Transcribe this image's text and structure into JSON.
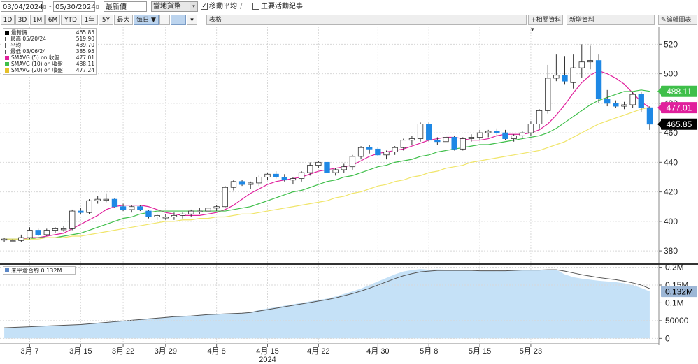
{
  "toolbar": {
    "start_date": "03/04/2024",
    "end_date": "05/30/2024",
    "price_type": "最新價",
    "currency": "當地貨幣",
    "moving_avg_label": "移動平均",
    "moving_avg_checked": true,
    "events_label": "主要活動紀事",
    "events_checked": false,
    "pencil_icon": "pencil-icon",
    "calendar_icon": "calendar-icon"
  },
  "ranges": {
    "buttons": [
      "1D",
      "3D",
      "1M",
      "6M",
      "YTD",
      "1年",
      "5Y",
      "最大"
    ],
    "frequency": "每日 ▼",
    "chart_type_label": "表格",
    "related_data": "相關資料",
    "news_data": "新增資料",
    "edit_chart": "編輯圖表"
  },
  "legend": {
    "items": [
      {
        "name": "最新價",
        "value": "465.85",
        "color": "#000000",
        "icon": "square"
      },
      {
        "name": "最高 05/20/24",
        "value": "519.90",
        "color": "#555555",
        "icon": "arrow-up-icon"
      },
      {
        "name": "平均",
        "value": "439.70",
        "color": "#555555",
        "icon": "average-icon"
      },
      {
        "name": "最低 03/06/24",
        "value": "385.95",
        "color": "#555555",
        "icon": "arrow-down-icon"
      },
      {
        "name": "SMAVG (5) on 收盤",
        "value": "477.01",
        "color": "#e0209c",
        "icon": "square"
      },
      {
        "name": "SMAVG (10) on 收盤",
        "value": "488.11",
        "color": "#3fbf4a",
        "icon": "square"
      },
      {
        "name": "SMAVG (20) on 收盤",
        "value": "477.24",
        "color": "#e6c02a",
        "icon": "square"
      }
    ]
  },
  "volume_legend": {
    "label": "未平倉合約 0.132M",
    "color": "#5b87c7"
  },
  "badges": [
    {
      "text": "488.11",
      "bg": "#3fbf4a",
      "color": "#ffffff",
      "value": 488.11
    },
    {
      "text": "477.01",
      "bg": "#e0209c",
      "color": "#ffffff",
      "value": 477.01
    },
    {
      "text": "465.85",
      "bg": "#000000",
      "color": "#ffffff",
      "value": 465.85
    }
  ],
  "volume_badge": {
    "text": "0.132M",
    "bg": "#9db7d6",
    "color": "#000000"
  },
  "chart_data": [
    {
      "type": "candlestick",
      "x_tick_labels": [
        "3月 7",
        "3月 15",
        "3月 22",
        "3月 29",
        "4月 8",
        "4月 15",
        "4月 22",
        "4月 30",
        "5月 8",
        "5月 15",
        "5月 23"
      ],
      "x_year_label": "2024",
      "y_ticks": [
        380,
        400,
        420,
        440,
        460,
        480,
        500,
        520
      ],
      "ylim": [
        372,
        532
      ],
      "up_color": "#ffffff",
      "down_color": "#1e88e5",
      "candles": [
        {
          "o": 388,
          "h": 389,
          "l": 386,
          "c": 388
        },
        {
          "o": 387,
          "h": 388,
          "l": 386,
          "c": 387
        },
        {
          "o": 387,
          "h": 391,
          "l": 386,
          "c": 389
        },
        {
          "o": 389,
          "h": 396,
          "l": 388,
          "c": 394
        },
        {
          "o": 394,
          "h": 395,
          "l": 390,
          "c": 391
        },
        {
          "o": 391,
          "h": 395,
          "l": 390,
          "c": 394
        },
        {
          "o": 394,
          "h": 396,
          "l": 392,
          "c": 395
        },
        {
          "o": 395,
          "h": 397,
          "l": 393,
          "c": 395
        },
        {
          "o": 395,
          "h": 408,
          "l": 394,
          "c": 407
        },
        {
          "o": 407,
          "h": 409,
          "l": 405,
          "c": 406
        },
        {
          "o": 406,
          "h": 415,
          "l": 405,
          "c": 414
        },
        {
          "o": 414,
          "h": 417,
          "l": 412,
          "c": 415
        },
        {
          "o": 415,
          "h": 419,
          "l": 413,
          "c": 415
        },
        {
          "o": 415,
          "h": 416,
          "l": 409,
          "c": 410
        },
        {
          "o": 410,
          "h": 412,
          "l": 407,
          "c": 408
        },
        {
          "o": 408,
          "h": 411,
          "l": 406,
          "c": 410
        },
        {
          "o": 410,
          "h": 411,
          "l": 407,
          "c": 408
        },
        {
          "o": 407,
          "h": 408,
          "l": 402,
          "c": 403
        },
        {
          "o": 403,
          "h": 405,
          "l": 401,
          "c": 404
        },
        {
          "o": 403,
          "h": 405,
          "l": 401,
          "c": 403
        },
        {
          "o": 403,
          "h": 406,
          "l": 401,
          "c": 404
        },
        {
          "o": 404,
          "h": 406,
          "l": 402,
          "c": 405
        },
        {
          "o": 405,
          "h": 408,
          "l": 403,
          "c": 407
        },
        {
          "o": 407,
          "h": 409,
          "l": 405,
          "c": 407
        },
        {
          "o": 407,
          "h": 410,
          "l": 405,
          "c": 409
        },
        {
          "o": 409,
          "h": 411,
          "l": 407,
          "c": 410
        },
        {
          "o": 410,
          "h": 424,
          "l": 409,
          "c": 423
        },
        {
          "o": 423,
          "h": 428,
          "l": 421,
          "c": 427
        },
        {
          "o": 427,
          "h": 428,
          "l": 424,
          "c": 425
        },
        {
          "o": 425,
          "h": 427,
          "l": 422,
          "c": 426
        },
        {
          "o": 426,
          "h": 431,
          "l": 424,
          "c": 430
        },
        {
          "o": 430,
          "h": 433,
          "l": 428,
          "c": 432
        },
        {
          "o": 432,
          "h": 434,
          "l": 429,
          "c": 430
        },
        {
          "o": 430,
          "h": 432,
          "l": 427,
          "c": 428
        },
        {
          "o": 428,
          "h": 430,
          "l": 425,
          "c": 429
        },
        {
          "o": 429,
          "h": 434,
          "l": 427,
          "c": 433
        },
        {
          "o": 433,
          "h": 440,
          "l": 431,
          "c": 438
        },
        {
          "o": 438,
          "h": 441,
          "l": 436,
          "c": 440
        },
        {
          "o": 440,
          "h": 440,
          "l": 431,
          "c": 433
        },
        {
          "o": 433,
          "h": 436,
          "l": 431,
          "c": 435
        },
        {
          "o": 435,
          "h": 439,
          "l": 433,
          "c": 437
        },
        {
          "o": 437,
          "h": 445,
          "l": 435,
          "c": 444
        },
        {
          "o": 444,
          "h": 451,
          "l": 442,
          "c": 450
        },
        {
          "o": 450,
          "h": 452,
          "l": 446,
          "c": 449
        },
        {
          "o": 449,
          "h": 450,
          "l": 444,
          "c": 445
        },
        {
          "o": 445,
          "h": 448,
          "l": 442,
          "c": 447
        },
        {
          "o": 447,
          "h": 451,
          "l": 445,
          "c": 450
        },
        {
          "o": 450,
          "h": 456,
          "l": 448,
          "c": 455
        },
        {
          "o": 455,
          "h": 458,
          "l": 452,
          "c": 456
        },
        {
          "o": 456,
          "h": 467,
          "l": 454,
          "c": 466
        },
        {
          "o": 466,
          "h": 467,
          "l": 454,
          "c": 455
        },
        {
          "o": 455,
          "h": 457,
          "l": 452,
          "c": 454
        },
        {
          "o": 454,
          "h": 459,
          "l": 452,
          "c": 457
        },
        {
          "o": 457,
          "h": 458,
          "l": 448,
          "c": 449
        },
        {
          "o": 449,
          "h": 457,
          "l": 448,
          "c": 456
        },
        {
          "o": 456,
          "h": 459,
          "l": 454,
          "c": 457
        },
        {
          "o": 457,
          "h": 462,
          "l": 455,
          "c": 460
        },
        {
          "o": 460,
          "h": 462,
          "l": 457,
          "c": 461
        },
        {
          "o": 461,
          "h": 463,
          "l": 458,
          "c": 460
        },
        {
          "o": 460,
          "h": 462,
          "l": 455,
          "c": 456
        },
        {
          "o": 456,
          "h": 459,
          "l": 454,
          "c": 458
        },
        {
          "o": 458,
          "h": 461,
          "l": 456,
          "c": 460
        },
        {
          "o": 460,
          "h": 468,
          "l": 458,
          "c": 466
        },
        {
          "o": 466,
          "h": 476,
          "l": 463,
          "c": 475
        },
        {
          "o": 475,
          "h": 506,
          "l": 473,
          "c": 497
        },
        {
          "o": 497,
          "h": 513,
          "l": 495,
          "c": 499
        },
        {
          "o": 499,
          "h": 512,
          "l": 493,
          "c": 495
        },
        {
          "o": 494,
          "h": 513,
          "l": 490,
          "c": 504
        },
        {
          "o": 504,
          "h": 520,
          "l": 497,
          "c": 508
        },
        {
          "o": 508,
          "h": 519,
          "l": 503,
          "c": 509
        },
        {
          "o": 509,
          "h": 513,
          "l": 480,
          "c": 483
        },
        {
          "o": 483,
          "h": 489,
          "l": 478,
          "c": 480
        },
        {
          "o": 480,
          "h": 482,
          "l": 477,
          "c": 478
        },
        {
          "o": 478,
          "h": 481,
          "l": 476,
          "c": 479
        },
        {
          "o": 479,
          "h": 488,
          "l": 477,
          "c": 486
        },
        {
          "o": 486,
          "h": 488,
          "l": 474,
          "c": 477
        },
        {
          "o": 477,
          "h": 478,
          "l": 462,
          "c": 465.85
        }
      ],
      "series": [
        {
          "name": "SMAVG (5) on 收盤",
          "color": "#e0209c",
          "values": [
            388,
            388,
            388,
            389,
            389,
            390,
            391,
            392,
            395,
            398,
            401,
            404,
            408,
            410,
            411,
            411,
            411,
            410,
            408,
            406,
            405,
            404,
            404,
            404,
            405,
            406,
            408,
            411,
            415,
            419,
            422,
            425,
            427,
            428,
            429,
            430,
            432,
            434,
            435,
            436,
            437,
            438,
            441,
            444,
            446,
            447,
            448,
            449,
            451,
            453,
            455,
            456,
            457,
            457,
            456,
            455,
            455,
            456,
            458,
            459,
            459,
            459,
            460,
            462,
            466,
            472,
            479,
            487,
            494,
            499,
            502,
            500,
            497,
            493,
            487,
            481,
            477
          ]
        },
        {
          "name": "SMAVG (10) on 收盤",
          "color": "#3fbf4a",
          "values": [
            388,
            388,
            388,
            388,
            389,
            389,
            389,
            390,
            391,
            392,
            394,
            396,
            398,
            400,
            402,
            403,
            405,
            406,
            407,
            407,
            407,
            407,
            407,
            407,
            407,
            407,
            407,
            408,
            409,
            410,
            412,
            414,
            416,
            418,
            420,
            421,
            423,
            425,
            427,
            428,
            430,
            431,
            433,
            435,
            437,
            438,
            440,
            441,
            442,
            444,
            445,
            447,
            448,
            449,
            450,
            451,
            452,
            452,
            453,
            454,
            455,
            456,
            457,
            458,
            460,
            463,
            467,
            471,
            475,
            479,
            482,
            484,
            486,
            488,
            488,
            489,
            488.11
          ]
        },
        {
          "name": "SMAVG (20) on 收盤",
          "color": "#f0e56a",
          "values": [
            388,
            388,
            388,
            388,
            388,
            389,
            389,
            389,
            390,
            390,
            391,
            392,
            393,
            394,
            395,
            396,
            397,
            398,
            399,
            400,
            400,
            401,
            401,
            402,
            402,
            403,
            403,
            404,
            405,
            405,
            406,
            407,
            408,
            409,
            410,
            411,
            412,
            413,
            414,
            416,
            417,
            419,
            420,
            422,
            424,
            425,
            427,
            428,
            430,
            431,
            433,
            434,
            436,
            437,
            438,
            440,
            441,
            442,
            443,
            444,
            445,
            446,
            447,
            448,
            450,
            452,
            454,
            457,
            460,
            463,
            466,
            468,
            470,
            472,
            474,
            476,
            477.24
          ]
        }
      ]
    },
    {
      "type": "area",
      "name": "未平倉合約",
      "y_tick_labels": [
        "0.2M",
        "0.15M",
        "0.1M",
        "50000",
        "0"
      ],
      "y_tick_values": [
        200000,
        150000,
        100000,
        50000,
        0
      ],
      "ylim": [
        -15000,
        205000
      ],
      "fill_color": "#c5e1f7",
      "line_color": "#555555",
      "values": [
        30000,
        31000,
        32000,
        33000,
        34000,
        35000,
        36000,
        37000,
        38000,
        40000,
        42000,
        44000,
        46000,
        48000,
        50000,
        52000,
        54000,
        56000,
        58000,
        60000,
        62000,
        63000,
        64000,
        66000,
        68000,
        69000,
        70000,
        71000,
        72000,
        74000,
        80000,
        84000,
        88000,
        92000,
        96000,
        100000,
        104000,
        108000,
        112000,
        118000,
        125000,
        132000,
        140000,
        150000,
        160000,
        170000,
        180000,
        188000,
        192000,
        195000,
        193000,
        194000,
        193000,
        192000,
        191000,
        190000,
        189000,
        190000,
        189000,
        190000,
        191000,
        192000,
        193000,
        192000,
        193000,
        193000,
        180000,
        172000,
        168000,
        165000,
        162000,
        160000,
        158000,
        155000,
        150000,
        142000,
        132000
      ],
      "avg_values": [
        30000,
        31000,
        32000,
        33000,
        34000,
        35000,
        36000,
        37000,
        38000,
        39000,
        41000,
        43000,
        45000,
        47000,
        49000,
        51000,
        53000,
        55000,
        57000,
        59000,
        61000,
        62000,
        63000,
        65000,
        67000,
        68000,
        69000,
        70000,
        71000,
        73000,
        77000,
        81000,
        85000,
        89000,
        93000,
        97000,
        101000,
        105000,
        109000,
        114000,
        120000,
        126000,
        133000,
        141000,
        150000,
        159000,
        168000,
        176000,
        182000,
        187000,
        189000,
        191000,
        191000,
        191000,
        191000,
        191000,
        190000,
        190000,
        190000,
        190000,
        191000,
        192000,
        192000,
        192000,
        193000,
        193000,
        189000,
        184000,
        179000,
        175000,
        171000,
        168000,
        165000,
        161000,
        156000,
        150000,
        140000
      ]
    }
  ]
}
